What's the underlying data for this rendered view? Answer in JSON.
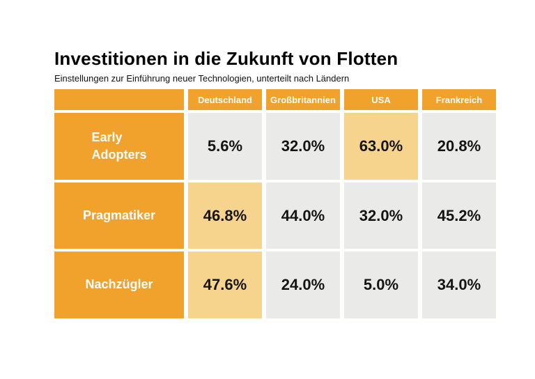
{
  "colors": {
    "orange": "#F0A22D",
    "highlight": "#F7D48E",
    "cell_gray": "#EAEAE8",
    "header_text": "#FFFFFF",
    "text": "#111111",
    "background": "#FFFFFF"
  },
  "header": {
    "title": "Investitionen in die Zukunft von Flotten",
    "subtitle": "Einstellungen zur Einführung neuer Technologien, unterteilt nach Ländern"
  },
  "table": {
    "corner_label": "",
    "columns": [
      "Deutschland",
      "Großbritannien",
      "USA",
      "Frankreich"
    ],
    "rows": [
      {
        "label": "Early\nAdopters",
        "values": [
          "5.6%",
          "32.0%",
          "63.0%",
          "20.8%"
        ],
        "highlight_col": 2
      },
      {
        "label": "Pragmatiker",
        "values": [
          "46.8%",
          "44.0%",
          "32.0%",
          "45.2%"
        ],
        "highlight_col": 0
      },
      {
        "label": "Nachzügler",
        "values": [
          "47.6%",
          "24.0%",
          "5.0%",
          "34.0%"
        ],
        "highlight_col": 0
      }
    ]
  },
  "chart_data": {
    "type": "table",
    "title": "Investitionen in die Zukunft von Flotten",
    "subtitle": "Einstellungen zur Einführung neuer Technologien, unterteilt nach Ländern",
    "categories": [
      "Deutschland",
      "Großbritannien",
      "USA",
      "Frankreich"
    ],
    "series": [
      {
        "name": "Early Adopters",
        "values": [
          5.6,
          32.0,
          63.0,
          20.8
        ]
      },
      {
        "name": "Pragmatiker",
        "values": [
          46.8,
          44.0,
          32.0,
          45.2
        ]
      },
      {
        "name": "Nachzügler",
        "values": [
          47.6,
          24.0,
          5.0,
          34.0
        ]
      }
    ],
    "unit": "%",
    "legend_position": "none",
    "note": "Row-maximum cells are highlighted in light tan"
  }
}
